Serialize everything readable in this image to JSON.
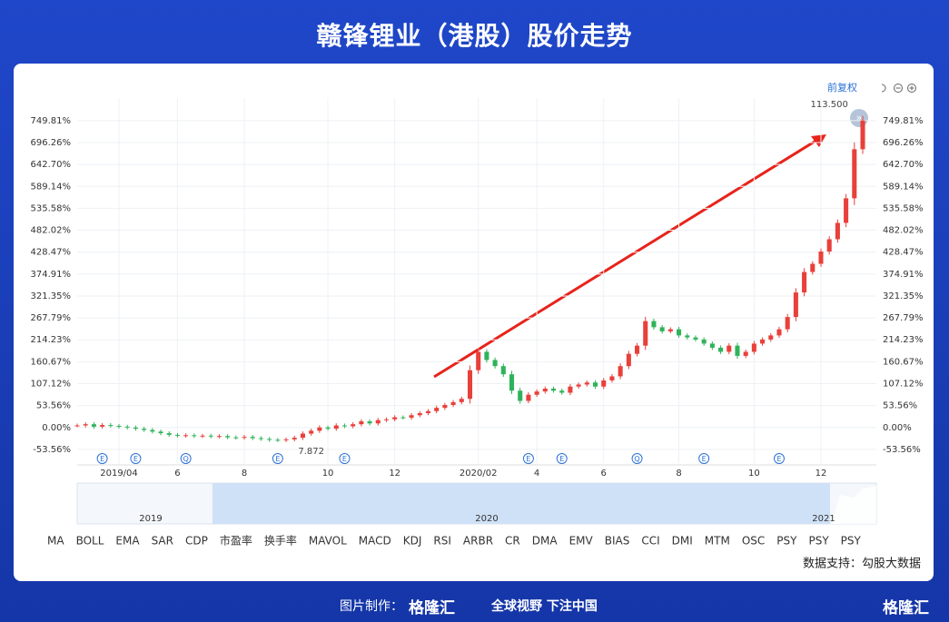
{
  "chart_data": {
    "type": "candlestick",
    "title": "赣锋锂业（港股）股价走势",
    "adjust_label": "前复权",
    "values": [
      5,
      8,
      2,
      6,
      4,
      2,
      0,
      -3,
      -6,
      -10,
      -14,
      -18,
      -20,
      -19,
      -21,
      -20,
      -22,
      -21,
      -24,
      -25,
      -23,
      -26,
      -28,
      -30,
      -31,
      -29,
      -25,
      -15,
      -8,
      0,
      -3,
      5,
      3,
      8,
      15,
      10,
      18,
      20,
      25,
      24,
      30,
      35,
      40,
      48,
      55,
      62,
      70,
      140,
      185,
      165,
      150,
      130,
      90,
      65,
      80,
      88,
      95,
      90,
      85,
      100,
      105,
      110,
      100,
      115,
      125,
      150,
      180,
      200,
      260,
      245,
      235,
      240,
      225,
      220,
      215,
      205,
      195,
      185,
      200,
      175,
      185,
      205,
      215,
      225,
      240,
      270,
      330,
      380,
      400,
      430,
      460,
      500,
      560,
      680,
      750
    ],
    "up_color": "#e8403a",
    "down_color": "#2fb35a",
    "xlim": [
      0,
      94
    ],
    "xticks": [
      {
        "value": 5,
        "label": "2019/04"
      },
      {
        "value": 12,
        "label": "6"
      },
      {
        "value": 20,
        "label": "8"
      },
      {
        "value": 30,
        "label": "10"
      },
      {
        "value": 38,
        "label": "12"
      },
      {
        "value": 48,
        "label": "2020/02"
      },
      {
        "value": 55,
        "label": "4"
      },
      {
        "value": 63,
        "label": "6"
      },
      {
        "value": 72,
        "label": "8"
      },
      {
        "value": 81,
        "label": "10"
      },
      {
        "value": 89,
        "label": "12"
      }
    ],
    "ylim": [
      -87,
      805
    ],
    "yticks": [
      {
        "value": -53.56,
        "label": "-53.56%"
      },
      {
        "value": 0,
        "label": "0.00%"
      },
      {
        "value": 53.56,
        "label": "53.56%"
      },
      {
        "value": 107.12,
        "label": "107.12%"
      },
      {
        "value": 160.67,
        "label": "160.67%"
      },
      {
        "value": 214.23,
        "label": "214.23%"
      },
      {
        "value": 267.79,
        "label": "267.79%"
      },
      {
        "value": 321.35,
        "label": "321.35%"
      },
      {
        "value": 374.91,
        "label": "374.91%"
      },
      {
        "value": 428.47,
        "label": "428.47%"
      },
      {
        "value": 482.02,
        "label": "482.02%"
      },
      {
        "value": 535.58,
        "label": "535.58%"
      },
      {
        "value": 589.14,
        "label": "589.14%"
      },
      {
        "value": 642.7,
        "label": "642.70%"
      },
      {
        "value": 696.26,
        "label": "696.26%"
      },
      {
        "value": 749.81,
        "label": "749.81%"
      }
    ],
    "grid": true,
    "annotations": [
      {
        "label": "113.500",
        "x": 90,
        "y": 790
      },
      {
        "label": "7.872",
        "x": 28,
        "y": -58
      }
    ],
    "events": [
      {
        "label": "E",
        "x": 3
      },
      {
        "label": "E",
        "x": 7
      },
      {
        "label": "Q",
        "x": 13
      },
      {
        "label": "E",
        "x": 24
      },
      {
        "label": "E",
        "x": 32
      },
      {
        "label": "E",
        "x": 54
      },
      {
        "label": "E",
        "x": 58
      },
      {
        "label": "Q",
        "x": 67
      },
      {
        "label": "E",
        "x": 75
      },
      {
        "label": "E",
        "x": 84
      }
    ],
    "navigator_labels": [
      "2019",
      "2020",
      "2021"
    ],
    "indicators": [
      "MA",
      "BOLL",
      "EMA",
      "SAR",
      "CDP",
      "市盈率",
      "换手率",
      "MAVOL",
      "MACD",
      "KDJ",
      "RSI",
      "ARBR",
      "CR",
      "DMA",
      "EMV",
      "BIAS",
      "CCI",
      "DMI",
      "MTM",
      "OSC",
      "PSY",
      "PSY",
      "PSY"
    ],
    "source": "数据支持：勾股大数据"
  },
  "footer": {
    "made_by": "图片制作：",
    "brand": "格隆汇",
    "slogan": "全球视野 下注中国"
  }
}
